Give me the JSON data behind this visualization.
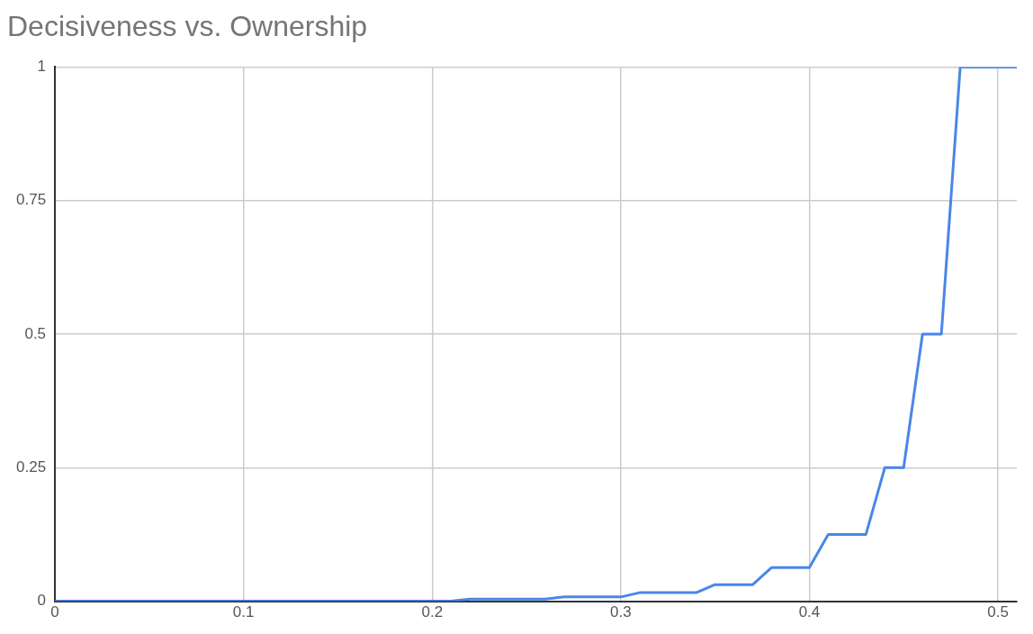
{
  "chart_data": {
    "type": "line",
    "title": "Decisiveness vs. Ownership",
    "x": [
      0,
      0.21,
      0.22,
      0.26,
      0.27,
      0.3,
      0.31,
      0.34,
      0.35,
      0.37,
      0.38,
      0.4,
      0.41,
      0.43,
      0.44,
      0.45,
      0.46,
      0.47,
      0.48,
      0.51
    ],
    "series": [
      {
        "color": "#4a86e8",
        "values": [
          0,
          0,
          0.004,
          0.004,
          0.008,
          0.008,
          0.016,
          0.016,
          0.031,
          0.031,
          0.063,
          0.063,
          0.125,
          0.125,
          0.25,
          0.25,
          0.5,
          0.5,
          1,
          1
        ]
      }
    ],
    "xlim": [
      0,
      0.51
    ],
    "xticks": [
      0,
      0.1,
      0.2,
      0.3,
      0.4,
      0.5
    ],
    "ylim": [
      0,
      1
    ],
    "yticks": [
      0,
      0.25,
      0.5,
      0.75,
      1
    ],
    "grid": true,
    "legend": false,
    "marker": "none",
    "line_style": "solid"
  }
}
